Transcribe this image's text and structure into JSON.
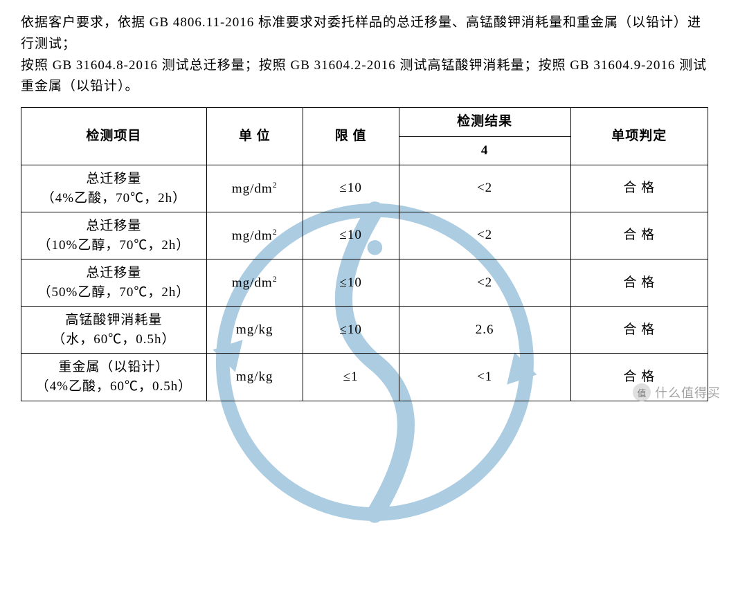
{
  "intro": {
    "line1": "依据客户要求，依据 GB 4806.11-2016 标准要求对委托样品的总迁移量、高锰酸钾消耗量和重金属（以铅计）进行测试；",
    "line2": "按照 GB 31604.8-2016 测试总迁移量；按照 GB 31604.2-2016 测试高锰酸钾消耗量；按照 GB 31604.9-2016 测试重金属（以铅计）。"
  },
  "table": {
    "headers": {
      "item": "检测项目",
      "unit": "单 位",
      "limit": "限 值",
      "result": "检测结果",
      "result_sub": "4",
      "verdict": "单项判定"
    },
    "rows": [
      {
        "item_l1": "总迁移量",
        "item_l2": "（4%乙酸，70℃，2h）",
        "unit": "mg/dm²",
        "limit": "≤10",
        "result": "<2",
        "verdict": "合 格"
      },
      {
        "item_l1": "总迁移量",
        "item_l2": "（10%乙醇，70℃，2h）",
        "unit": "mg/dm²",
        "limit": "≤10",
        "result": "<2",
        "verdict": "合 格"
      },
      {
        "item_l1": "总迁移量",
        "item_l2": "（50%乙醇，70℃，2h）",
        "unit": "mg/dm²",
        "limit": "≤10",
        "result": "<2",
        "verdict": "合 格"
      },
      {
        "item_l1": "高锰酸钾消耗量",
        "item_l2": "（水，60℃，0.5h）",
        "unit": "mg/kg",
        "limit": "≤10",
        "result": "2.6",
        "verdict": "合 格"
      },
      {
        "item_l1": "重金属（以铅计）",
        "item_l2": "（4%乙酸，60℃，0.5h）",
        "unit": "mg/kg",
        "limit": "≤1",
        "result": "<1",
        "verdict": "合 格"
      }
    ]
  },
  "footer": {
    "badge": "值",
    "text": "什么值得买"
  },
  "style": {
    "watermark_color": "#4a8fbf",
    "text_color": "#000000",
    "bg_color": "#ffffff"
  }
}
